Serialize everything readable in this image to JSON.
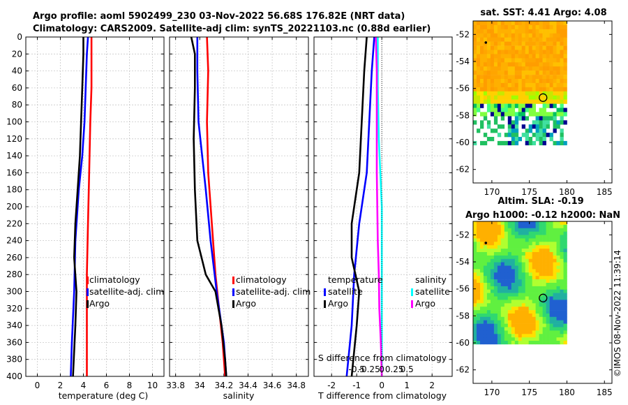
{
  "title": {
    "line1": "Argo profile: aoml 5902499_230 03-Nov-2022 56.68S 176.82E (NRT data)",
    "line2": "Climatology: CARS2009. Satellite-adj clim: synTS_20221103.nc (0.88d earlier)"
  },
  "watermark": "©IMOS 08-Nov-2022 11:39:14",
  "colors": {
    "climatology": "#ff0000",
    "satellite_adj": "#0000ff",
    "argo": "#000000",
    "satellite_s": "#00ffff",
    "salinity_argo": "#ff00ff"
  },
  "chart_data": [
    {
      "name": "temperature",
      "type": "line",
      "xlabel": "temperature (deg C)",
      "ylabel": "",
      "xlim": [
        -1,
        11
      ],
      "ylim": [
        400,
        0
      ],
      "xticks": [
        "0",
        "2",
        "4",
        "6",
        "8",
        "10"
      ],
      "xtick_values": [
        0,
        2,
        4,
        6,
        8,
        10
      ],
      "yticks": [
        "0",
        "20",
        "40",
        "60",
        "80",
        "100",
        "120",
        "140",
        "160",
        "180",
        "200",
        "220",
        "240",
        "260",
        "280",
        "300",
        "320",
        "340",
        "360",
        "380",
        "400"
      ],
      "ytick_values": [
        0,
        20,
        40,
        60,
        80,
        100,
        120,
        140,
        160,
        180,
        200,
        220,
        240,
        260,
        280,
        300,
        320,
        340,
        360,
        380,
        400
      ],
      "legend": [
        "climatology",
        "satellite-adj. clim",
        "Argo"
      ],
      "series": [
        {
          "name": "climatology",
          "color": "#ff0000",
          "points": [
            [
              4.7,
              0
            ],
            [
              4.7,
              20
            ],
            [
              4.7,
              60
            ],
            [
              4.6,
              100
            ],
            [
              4.5,
              160
            ],
            [
              4.4,
              220
            ],
            [
              4.3,
              280
            ],
            [
              4.3,
              340
            ],
            [
              4.3,
              400
            ]
          ]
        },
        {
          "name": "satellite-adj. clim",
          "color": "#0000ff",
          "points": [
            [
              4.4,
              0
            ],
            [
              4.3,
              20
            ],
            [
              4.2,
              60
            ],
            [
              4.1,
              100
            ],
            [
              3.9,
              140
            ],
            [
              3.6,
              180
            ],
            [
              3.3,
              240
            ],
            [
              3.2,
              300
            ],
            [
              3.0,
              360
            ],
            [
              2.9,
              400
            ]
          ]
        },
        {
          "name": "Argo",
          "color": "#000000",
          "points": [
            [
              4.0,
              0
            ],
            [
              4.0,
              20
            ],
            [
              3.9,
              60
            ],
            [
              3.8,
              100
            ],
            [
              3.7,
              140
            ],
            [
              3.5,
              180
            ],
            [
              3.3,
              220
            ],
            [
              3.2,
              260
            ],
            [
              3.4,
              300
            ],
            [
              3.3,
              340
            ],
            [
              3.2,
              370
            ],
            [
              3.1,
              400
            ]
          ]
        }
      ]
    },
    {
      "name": "salinity",
      "type": "line",
      "xlabel": "salinity",
      "xlim": [
        33.75,
        34.9
      ],
      "ylim": [
        400,
        0
      ],
      "xticks": [
        "33.8",
        "34",
        "34.2",
        "34.4",
        "34.6",
        "34.8"
      ],
      "xtick_values": [
        33.8,
        34.0,
        34.2,
        34.4,
        34.6,
        34.8
      ],
      "legend": [
        "climatology",
        "satellite-adj. clim",
        "Argo"
      ],
      "series": [
        {
          "name": "climatology",
          "color": "#ff0000",
          "points": [
            [
              34.06,
              0
            ],
            [
              34.07,
              40
            ],
            [
              34.06,
              100
            ],
            [
              34.07,
              160
            ],
            [
              34.1,
              220
            ],
            [
              34.13,
              280
            ],
            [
              34.16,
              320
            ],
            [
              34.19,
              360
            ],
            [
              34.21,
              400
            ]
          ]
        },
        {
          "name": "satellite-adj. clim",
          "color": "#0000ff",
          "points": [
            [
              33.98,
              0
            ],
            [
              33.98,
              40
            ],
            [
              33.99,
              100
            ],
            [
              34.02,
              140
            ],
            [
              34.05,
              180
            ],
            [
              34.09,
              240
            ],
            [
              34.14,
              300
            ],
            [
              34.2,
              360
            ],
            [
              34.22,
              400
            ]
          ]
        },
        {
          "name": "Argo",
          "color": "#000000",
          "points": [
            [
              33.93,
              0
            ],
            [
              33.96,
              20
            ],
            [
              33.96,
              60
            ],
            [
              33.95,
              120
            ],
            [
              33.96,
              180
            ],
            [
              33.98,
              240
            ],
            [
              34.05,
              280
            ],
            [
              34.13,
              300
            ],
            [
              34.18,
              340
            ],
            [
              34.21,
              380
            ],
            [
              34.22,
              400
            ]
          ]
        }
      ]
    },
    {
      "name": "difference",
      "type": "line",
      "xlabel": "T difference from climatology",
      "xlim": [
        -2.7,
        2.8
      ],
      "ylim": [
        400,
        0
      ],
      "xticks": [
        "-2",
        "-1",
        "0",
        "1",
        "2"
      ],
      "xtick_values": [
        -2,
        -1,
        0,
        1,
        2
      ],
      "top_axis": {
        "label": "S difference from climatology",
        "ticks": [
          "-0.5",
          "-0.25",
          "0",
          "0.25",
          "0.5"
        ],
        "tick_values": [
          -0.5,
          -0.25,
          0,
          0.25,
          0.5
        ]
      },
      "legend_left": {
        "title": "temperature",
        "entries": [
          "satellite",
          "Argo"
        ]
      },
      "legend_right": {
        "title": "salinity",
        "entries": [
          "satellite",
          "Argo"
        ]
      },
      "series": [
        {
          "name": "T satellite",
          "color": "#0000ff",
          "points": [
            [
              -0.3,
              0
            ],
            [
              -0.4,
              40
            ],
            [
              -0.5,
              100
            ],
            [
              -0.6,
              160
            ],
            [
              -0.9,
              220
            ],
            [
              -1.1,
              280
            ],
            [
              -1.2,
              340
            ],
            [
              -1.4,
              400
            ]
          ]
        },
        {
          "name": "T Argo",
          "color": "#000000",
          "points": [
            [
              -0.6,
              0
            ],
            [
              -0.7,
              40
            ],
            [
              -0.8,
              100
            ],
            [
              -0.9,
              160
            ],
            [
              -1.2,
              220
            ],
            [
              -1.2,
              260
            ],
            [
              -0.9,
              300
            ],
            [
              -1.0,
              340
            ],
            [
              -1.1,
              370
            ],
            [
              -1.2,
              400
            ]
          ]
        },
        {
          "name": "S satellite",
          "color": "#00ffff",
          "points": [
            [
              -0.08,
              0
            ],
            [
              -0.08,
              60
            ],
            [
              -0.06,
              120
            ],
            [
              -0.03,
              160
            ],
            [
              0.0,
              200
            ],
            [
              0.0,
              240
            ],
            [
              0.0,
              280
            ],
            [
              0.0,
              320
            ],
            [
              0.0,
              400
            ]
          ]
        },
        {
          "name": "S Argo",
          "color": "#ff00ff",
          "points": [
            [
              -0.12,
              0
            ],
            [
              -0.1,
              40
            ],
            [
              -0.1,
              100
            ],
            [
              -0.1,
              160
            ],
            [
              -0.09,
              200
            ],
            [
              -0.08,
              240
            ],
            [
              -0.06,
              280
            ],
            [
              -0.05,
              320
            ],
            [
              -0.02,
              360
            ],
            [
              0.0,
              400
            ]
          ]
        }
      ]
    },
    {
      "name": "sst_map",
      "type": "heatmap",
      "title": "sat. SST: 4.41 Argo: 4.08",
      "xlim": [
        167.5,
        186
      ],
      "ylim": [
        -63,
        -51
      ],
      "xticks": [
        "170",
        "175",
        "180",
        "185"
      ],
      "xtick_values": [
        170,
        175,
        180,
        185
      ],
      "yticks": [
        "-52",
        "-54",
        "-56",
        "-58",
        "-60",
        "-62"
      ],
      "ytick_values": [
        -52,
        -54,
        -56,
        -58,
        -60,
        -62
      ],
      "argo_position": [
        176.82,
        -56.68
      ],
      "marker_dot": [
        169.2,
        -52.6
      ]
    },
    {
      "name": "sla_map",
      "type": "heatmap",
      "title": "Altim. SLA: -0.19",
      "subtitle": "Argo h1000: -0.12 h2000: NaN",
      "xlim": [
        167.5,
        186
      ],
      "ylim": [
        -63,
        -51
      ],
      "xticks": [
        "170",
        "175",
        "180",
        "185"
      ],
      "xtick_values": [
        170,
        175,
        180,
        185
      ],
      "yticks": [
        "-52",
        "-54",
        "-56",
        "-58",
        "-60",
        "-62"
      ],
      "ytick_values": [
        -52,
        -54,
        -56,
        -58,
        -60,
        -62
      ],
      "argo_position": [
        176.82,
        -56.68
      ],
      "marker_dot": [
        169.2,
        -52.6
      ]
    }
  ]
}
